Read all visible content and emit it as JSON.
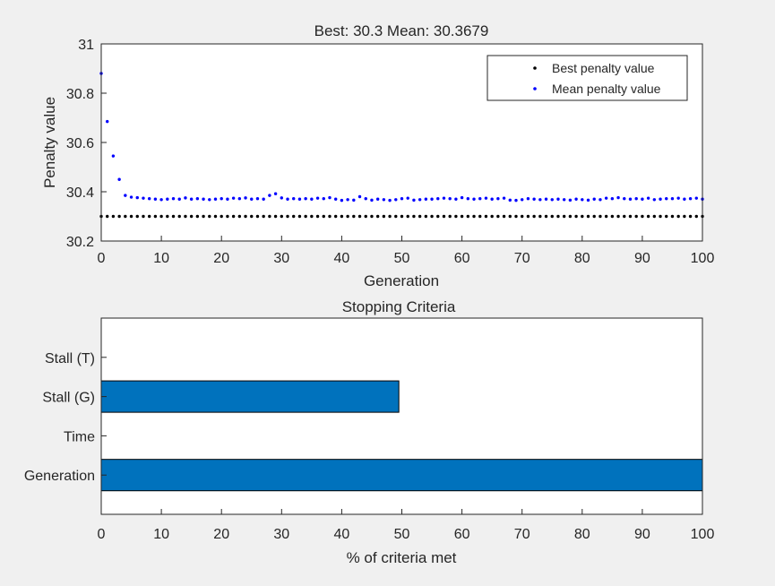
{
  "figure": {
    "background": "#f0f0f0"
  },
  "chart_data": [
    {
      "type": "scatter",
      "title": "Best: 30.3 Mean: 30.3679",
      "xlabel": "Generation",
      "ylabel": "Penalty value",
      "xlim": [
        0,
        100
      ],
      "ylim": [
        30.2,
        31
      ],
      "xticks": [
        "0",
        "10",
        "20",
        "30",
        "40",
        "50",
        "60",
        "70",
        "80",
        "90",
        "100"
      ],
      "yticks": [
        "30.2",
        "30.4",
        "30.6",
        "30.8",
        "31"
      ],
      "legend_position": "top-right",
      "series": [
        {
          "name": "Best penalty value",
          "color": "#000000",
          "marker": "dot",
          "x_start": 0,
          "x_end": 100,
          "values": [
            30.3,
            30.3,
            30.3,
            30.3,
            30.3,
            30.3,
            30.3,
            30.3,
            30.3,
            30.3,
            30.3,
            30.3,
            30.3,
            30.3,
            30.3,
            30.3,
            30.3,
            30.3,
            30.3,
            30.3,
            30.3,
            30.3,
            30.3,
            30.3,
            30.3,
            30.3,
            30.3,
            30.3,
            30.3,
            30.3,
            30.3,
            30.3,
            30.3,
            30.3,
            30.3,
            30.3,
            30.3,
            30.3,
            30.3,
            30.3,
            30.3,
            30.3,
            30.3,
            30.3,
            30.3,
            30.3,
            30.3,
            30.3,
            30.3,
            30.3,
            30.3,
            30.3,
            30.3,
            30.3,
            30.3,
            30.3,
            30.3,
            30.3,
            30.3,
            30.3,
            30.3,
            30.3,
            30.3,
            30.3,
            30.3,
            30.3,
            30.3,
            30.3,
            30.3,
            30.3,
            30.3,
            30.3,
            30.3,
            30.3,
            30.3,
            30.3,
            30.3,
            30.3,
            30.3,
            30.3,
            30.3,
            30.3,
            30.3,
            30.3,
            30.3,
            30.3,
            30.3,
            30.3,
            30.3,
            30.3,
            30.3,
            30.3,
            30.3,
            30.3,
            30.3,
            30.3,
            30.3,
            30.3,
            30.3,
            30.3,
            30.3
          ]
        },
        {
          "name": "Mean penalty value",
          "color": "#0000ff",
          "marker": "dot",
          "x_start": 0,
          "x_end": 100,
          "values": [
            30.88,
            30.685,
            30.545,
            30.45,
            30.385,
            30.378,
            30.376,
            30.374,
            30.372,
            30.37,
            30.368,
            30.37,
            30.372,
            30.37,
            30.375,
            30.37,
            30.372,
            30.37,
            30.368,
            30.37,
            30.372,
            30.37,
            30.374,
            30.372,
            30.375,
            30.37,
            30.372,
            30.37,
            30.385,
            30.392,
            30.375,
            30.37,
            30.372,
            30.37,
            30.372,
            30.37,
            30.374,
            30.372,
            30.376,
            30.37,
            30.365,
            30.368,
            30.366,
            30.38,
            30.372,
            30.366,
            30.37,
            30.368,
            30.365,
            30.368,
            30.372,
            30.374,
            30.366,
            30.368,
            30.37,
            30.37,
            30.372,
            30.374,
            30.372,
            30.37,
            30.376,
            30.372,
            30.37,
            30.372,
            30.374,
            30.37,
            30.372,
            30.374,
            30.366,
            30.365,
            30.368,
            30.372,
            30.37,
            30.368,
            30.37,
            30.368,
            30.37,
            30.368,
            30.366,
            30.37,
            30.368,
            30.366,
            30.37,
            30.368,
            30.374,
            30.372,
            30.376,
            30.372,
            30.37,
            30.372,
            30.37,
            30.374,
            30.368,
            30.37,
            30.372,
            30.372,
            30.374,
            30.37,
            30.372,
            30.374,
            30.37
          ]
        }
      ]
    },
    {
      "type": "bar",
      "orientation": "horizontal",
      "title": "Stopping Criteria",
      "xlabel": "% of criteria met",
      "ylabel": "",
      "xlim": [
        0,
        100
      ],
      "xticks": [
        "0",
        "10",
        "20",
        "30",
        "40",
        "50",
        "60",
        "70",
        "80",
        "90",
        "100"
      ],
      "categories": [
        "Generation",
        "Time",
        "Stall (G)",
        "Stall (T)"
      ],
      "values": [
        100,
        0,
        49.5,
        0
      ],
      "bar_color": "#0072bd"
    }
  ]
}
